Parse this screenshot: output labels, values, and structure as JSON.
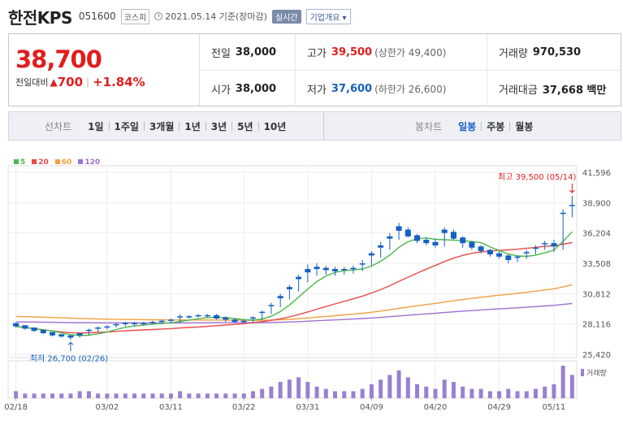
{
  "header": {
    "name": "한전KPS",
    "code": "051600",
    "market": "코스피",
    "date": "2021.05.14 기준(장마감)",
    "realtime": "실시간",
    "company_info": "기업개요 ▾"
  },
  "quote": {
    "price": "38,700",
    "change_label": "전일대비",
    "change_arrow": "▲",
    "change": "700",
    "change_pct": "+1.84%"
  },
  "details": {
    "prev_close": {
      "label": "전일",
      "value": "38,000"
    },
    "high": {
      "label": "고가",
      "value": "39,500",
      "sub": "(상한가 49,400)"
    },
    "volume": {
      "label": "거래량",
      "value": "970,530"
    },
    "open": {
      "label": "시가",
      "value": "38,000"
    },
    "low": {
      "label": "저가",
      "value": "37,600",
      "sub": "(하한가 26,600)"
    },
    "amount": {
      "label": "거래대금",
      "value": "37,668 백만"
    }
  },
  "period_bar": {
    "line_title": "선차트",
    "line_items": [
      "1일",
      "1주일",
      "3개월",
      "1년",
      "3년",
      "5년",
      "10년"
    ],
    "candle_title": "봉차트",
    "candle_items": [
      "일봉",
      "주봉",
      "월봉"
    ],
    "active": "일봉"
  },
  "legend": [
    {
      "label": "5",
      "color": "#4cb84c"
    },
    {
      "label": "20",
      "color": "#e84a4a"
    },
    {
      "label": "60",
      "color": "#f0a040"
    },
    {
      "label": "120",
      "color": "#a070d0"
    }
  ],
  "chart_data": {
    "type": "candlestick",
    "y_ticks": [
      "41,596",
      "38,900",
      "36,204",
      "33,508",
      "30,812",
      "28,116",
      "25,420"
    ],
    "ylim": [
      25420,
      41596
    ],
    "x_ticks": [
      "02/18",
      "03/02",
      "03/11",
      "03/22",
      "03/31",
      "04/09",
      "04/20",
      "04/29",
      "05/11"
    ],
    "high_annotation": "최고 39,500 (05/14)",
    "low_annotation": "최저 26,700 (02/26)",
    "volume_label": "거래량",
    "colors": {
      "up": "#e11d1d",
      "down": "#1560c4",
      "volume": "#9a7fd1"
    },
    "candles": [
      [
        28100,
        28200,
        27900,
        27800,
        28100
      ],
      [
        27900,
        28000,
        27700,
        27600,
        28000
      ],
      [
        27700,
        27800,
        27500,
        27400,
        27800
      ],
      [
        27500,
        27600,
        27300,
        27200,
        27600
      ],
      [
        27300,
        27400,
        27100,
        27000,
        27400
      ],
      [
        27100,
        27200,
        27000,
        26900,
        27200
      ],
      [
        27000,
        27100,
        26900,
        26700,
        27100
      ],
      [
        27000,
        27300,
        27100,
        26900,
        27300
      ],
      [
        27200,
        27600,
        27500,
        27100,
        27700
      ],
      [
        27500,
        27800,
        27700,
        27400,
        27900
      ],
      [
        27700,
        27900,
        27800,
        27600,
        28000
      ],
      [
        27900,
        28100,
        28000,
        27800,
        28200
      ],
      [
        28000,
        28200,
        28100,
        27900,
        28300
      ],
      [
        28100,
        28200,
        28100,
        27900,
        28300
      ],
      [
        28200,
        28200,
        28100,
        28000,
        28300
      ],
      [
        28300,
        28300,
        28200,
        28100,
        28400
      ],
      [
        28200,
        28400,
        28300,
        28100,
        28500
      ],
      [
        28300,
        28500,
        28400,
        28200,
        28600
      ],
      [
        28300,
        28800,
        28700,
        28200,
        29000
      ],
      [
        28700,
        28800,
        28700,
        28600,
        28900
      ],
      [
        28800,
        28900,
        28800,
        28700,
        29000
      ],
      [
        28900,
        28900,
        28800,
        28700,
        29000
      ],
      [
        28900,
        28900,
        28600,
        28500,
        29000
      ],
      [
        28700,
        28700,
        28500,
        28300,
        28800
      ],
      [
        28500,
        28500,
        28300,
        28200,
        28600
      ],
      [
        28300,
        28400,
        28300,
        28100,
        28500
      ],
      [
        28300,
        28700,
        28600,
        28200,
        28800
      ],
      [
        28600,
        29200,
        29100,
        28500,
        29300
      ],
      [
        29100,
        29800,
        29700,
        29000,
        30000
      ],
      [
        29700,
        30600,
        30400,
        29600,
        30800
      ],
      [
        30400,
        31400,
        31200,
        30300,
        31600
      ],
      [
        31200,
        32300,
        32100,
        31000,
        32500
      ],
      [
        32100,
        33000,
        32700,
        31800,
        33400
      ],
      [
        32700,
        33200,
        33000,
        32400,
        33500
      ],
      [
        33000,
        33100,
        32900,
        32500,
        33300
      ],
      [
        32900,
        33000,
        32800,
        32400,
        33200
      ],
      [
        32800,
        33000,
        32900,
        32500,
        33200
      ],
      [
        32900,
        33100,
        33000,
        32600,
        33300
      ],
      [
        33000,
        33500,
        33400,
        32800,
        33800
      ],
      [
        33400,
        34400,
        34200,
        33300,
        34600
      ],
      [
        34200,
        35100,
        34900,
        34000,
        35400
      ],
      [
        34900,
        35900,
        35700,
        34700,
        36200
      ],
      [
        35700,
        36800,
        36400,
        35600,
        37100
      ],
      [
        36400,
        36500,
        35900,
        35800,
        36700
      ],
      [
        35900,
        36000,
        35500,
        35300,
        36100
      ],
      [
        35500,
        35600,
        35300,
        35100,
        35800
      ],
      [
        35300,
        35400,
        35100,
        34900,
        35700
      ],
      [
        35100,
        36500,
        36200,
        35000,
        36700
      ],
      [
        36200,
        36300,
        35700,
        35600,
        36500
      ],
      [
        35700,
        35800,
        35300,
        34900,
        35900
      ],
      [
        35300,
        35400,
        34900,
        34700,
        35500
      ],
      [
        34900,
        35000,
        34600,
        34400,
        35100
      ],
      [
        34600,
        34700,
        34300,
        34100,
        34800
      ],
      [
        34300,
        34400,
        34100,
        33900,
        34600
      ],
      [
        34100,
        34200,
        33800,
        33500,
        34300
      ],
      [
        33800,
        34100,
        34000,
        33600,
        34200
      ],
      [
        34000,
        34500,
        34400,
        33900,
        34700
      ],
      [
        34400,
        34900,
        34800,
        34300,
        35100
      ],
      [
        34800,
        35300,
        35200,
        34700,
        35500
      ],
      [
        35200,
        35300,
        35000,
        34500,
        35600
      ],
      [
        35000,
        38000,
        37900,
        34700,
        38300
      ],
      [
        38000,
        38700,
        38600,
        37600,
        39500
      ]
    ],
    "volumes": [
      3,
      2,
      2,
      2,
      2,
      2,
      2,
      3,
      3,
      2,
      2,
      2,
      2,
      2,
      2,
      2,
      2,
      2,
      3,
      2,
      2,
      2,
      2,
      2,
      2,
      2,
      3,
      4,
      5,
      7,
      8,
      9,
      7,
      5,
      4,
      3,
      3,
      3,
      4,
      6,
      8,
      10,
      12,
      9,
      6,
      5,
      4,
      8,
      7,
      5,
      4,
      4,
      3,
      3,
      4,
      3,
      3,
      4,
      5,
      6,
      14,
      10
    ]
  }
}
